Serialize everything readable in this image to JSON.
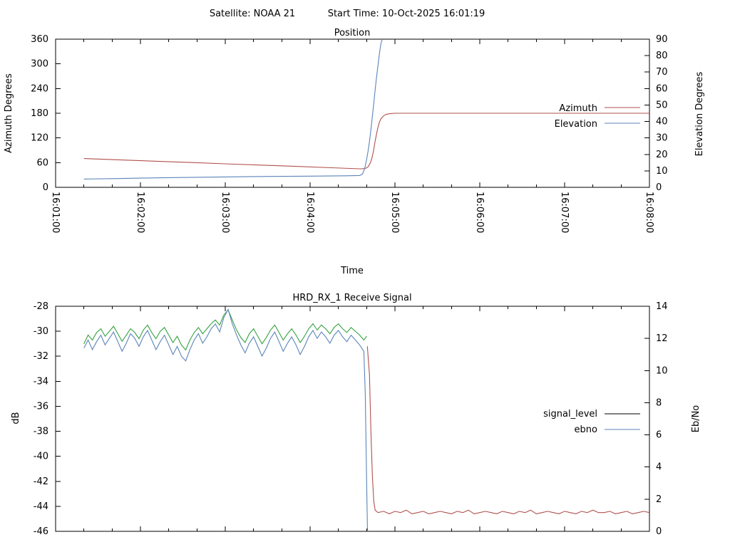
{
  "header": {
    "satellite_label": "Satellite: NOAA 21",
    "start_time_label": "Start Time: 10-Oct-2025 16:01:19"
  },
  "colors": {
    "azimuth": "#b0504c",
    "elevation": "#5b84b8",
    "signal_pre": "#35a23f",
    "signal_post": "#b0504c",
    "signal_legend": "#000000",
    "ebno": "#5b84b8",
    "axis": "#000000",
    "background": "#ffffff"
  },
  "chart_data": [
    {
      "type": "line",
      "title": "Position",
      "xlabel": "Time",
      "ylabel_left": "Azimuth Degrees",
      "ylabel_right": "Elevation Degrees",
      "x_range": [
        0,
        420
      ],
      "x_major_step": 60,
      "x_minor_step": 20,
      "x_tick_labels": [
        "16:01:00",
        "16:02:00",
        "16:03:00",
        "16:04:00",
        "16:05:00",
        "16:06:00",
        "16:07:00",
        "16:08:00"
      ],
      "left_range": [
        0,
        360
      ],
      "left_ticks": [
        0,
        60,
        120,
        180,
        240,
        300,
        360
      ],
      "right_range": [
        0,
        90
      ],
      "right_ticks": [
        0,
        10,
        20,
        30,
        40,
        50,
        60,
        70,
        80,
        90
      ],
      "grid": false,
      "legend_position": "inside-right",
      "legend": [
        {
          "label": "Azimuth",
          "color_key": "azimuth"
        },
        {
          "label": "Elevation",
          "color_key": "elevation"
        }
      ],
      "series": [
        {
          "name": "Azimuth",
          "axis": "left",
          "color_key": "azimuth",
          "segments": [
            {
              "points": [
                [
                  20,
                  70
                ],
                [
                  45,
                  66.8
                ],
                [
                  70,
                  63.6
                ],
                [
                  95,
                  60.4
                ],
                [
                  120,
                  57.2
                ],
                [
                  145,
                  54.0
                ],
                [
                  170,
                  50.8
                ],
                [
                  195,
                  47.6
                ],
                [
                  215,
                  45.0
                ],
                [
                  218,
                  45.2
                ],
                [
                  220,
                  47
                ],
                [
                  221,
                  50
                ],
                [
                  222,
                  55
                ],
                [
                  223,
                  63
                ],
                [
                  224,
                  75
                ],
                [
                  225,
                  92
                ],
                [
                  226,
                  112
                ],
                [
                  227,
                  130
                ],
                [
                  228,
                  146
                ],
                [
                  229,
                  158
                ],
                [
                  230,
                  166
                ],
                [
                  232,
                  174
                ],
                [
                  234,
                  177.5
                ],
                [
                  237,
                  179.3
                ],
                [
                  240,
                  180
                ],
                [
                  420,
                  180
                ]
              ]
            }
          ]
        },
        {
          "name": "Elevation",
          "axis": "right",
          "color_key": "elevation",
          "segments": [
            {
              "points": [
                [
                  20,
                  5
                ],
                [
                  40,
                  5.3
                ],
                [
                  60,
                  5.6
                ],
                [
                  80,
                  5.9
                ],
                [
                  100,
                  6.1
                ],
                [
                  120,
                  6.3
                ],
                [
                  150,
                  6.6
                ],
                [
                  180,
                  6.8
                ],
                [
                  205,
                  7.0
                ],
                [
                  215,
                  7.2
                ],
                [
                  217,
                  8
                ],
                [
                  218,
                  10
                ],
                [
                  219,
                  13
                ],
                [
                  220,
                  17
                ],
                [
                  221,
                  22
                ],
                [
                  222,
                  28
                ],
                [
                  223,
                  35
                ],
                [
                  224,
                  43
                ],
                [
                  225,
                  51
                ],
                [
                  226,
                  59
                ],
                [
                  227,
                  67
                ],
                [
                  228,
                  74
                ],
                [
                  229,
                  81
                ],
                [
                  230,
                  87
                ],
                [
                  231,
                  90
                ]
              ]
            }
          ]
        }
      ]
    },
    {
      "type": "line",
      "title": "HRD_RX_1 Receive Signal",
      "xlabel": "",
      "ylabel_left": "dB",
      "ylabel_right": "Eb/No",
      "x_range": [
        0,
        420
      ],
      "x_major_step": 60,
      "x_minor_step": 20,
      "x_tick_labels": [],
      "left_range": [
        -46,
        -28
      ],
      "left_ticks": [
        -46,
        -44,
        -42,
        -40,
        -38,
        -36,
        -34,
        -32,
        -30,
        -28
      ],
      "right_range": [
        0,
        14
      ],
      "right_ticks": [
        0,
        2,
        4,
        6,
        8,
        10,
        12,
        14
      ],
      "grid": false,
      "legend_position": "inside-right",
      "legend": [
        {
          "label": "signal_level",
          "color_key": "signal_legend"
        },
        {
          "label": "ebno",
          "color_key": "ebno"
        }
      ],
      "series": [
        {
          "name": "signal_level",
          "axis": "left",
          "color_key": "signal_pre",
          "segments": [
            {
              "t0": 20,
              "dt": 3,
              "values": [
                -31.0,
                -30.3,
                -30.7,
                -30.1,
                -29.8,
                -30.4,
                -30.0,
                -29.6,
                -30.2,
                -30.8,
                -30.3,
                -29.8,
                -30.1,
                -30.6,
                -29.9,
                -29.5,
                -30.1,
                -30.6,
                -30.0,
                -29.7,
                -30.3,
                -30.9,
                -30.4,
                -31.1,
                -31.5,
                -30.7,
                -30.1,
                -29.7,
                -30.2,
                -29.8,
                -29.4,
                -29.1,
                -29.5,
                -28.7,
                -28.3,
                -29.1,
                -29.9,
                -30.5,
                -30.9,
                -30.2,
                -29.8,
                -30.4,
                -31.0,
                -30.5,
                -29.9,
                -29.5,
                -30.1,
                -30.7,
                -30.2,
                -29.8,
                -30.3,
                -30.9,
                -30.4,
                -29.8,
                -29.4,
                -29.9,
                -29.5,
                -29.8,
                -30.2,
                -29.7,
                -29.4,
                -29.8,
                -30.1,
                -29.7,
                -30.0,
                -30.3,
                -30.7
              ]
            },
            {
              "points": [
                [
                  220,
                  -30.4
                ]
              ]
            }
          ]
        },
        {
          "name": "signal_level",
          "axis": "left",
          "color_key": "signal_post",
          "segments": [
            {
              "points": [
                [
                  220.5,
                  -31.2
                ],
                [
                  222,
                  -33.5
                ],
                [
                  223,
                  -38.0
                ],
                [
                  224,
                  -41.5
                ],
                [
                  225,
                  -43.6
                ],
                [
                  226,
                  -44.3
                ]
              ]
            },
            {
              "t0": 228,
              "dt": 4,
              "values": [
                -44.5,
                -44.4,
                -44.6,
                -44.4,
                -44.5,
                -44.3,
                -44.6,
                -44.5,
                -44.4,
                -44.6,
                -44.5,
                -44.4,
                -44.5,
                -44.6,
                -44.4,
                -44.5,
                -44.3,
                -44.6,
                -44.5,
                -44.4,
                -44.5,
                -44.6,
                -44.4,
                -44.5,
                -44.6,
                -44.4,
                -44.5,
                -44.3,
                -44.6,
                -44.5,
                -44.4,
                -44.5,
                -44.6,
                -44.4,
                -44.5,
                -44.6,
                -44.4,
                -44.5,
                -44.3,
                -44.5,
                -44.5,
                -44.4,
                -44.6,
                -44.5,
                -44.4,
                -44.6,
                -44.5,
                -44.4,
                -44.5
              ]
            }
          ]
        },
        {
          "name": "ebno",
          "axis": "right",
          "color_key": "ebno",
          "segments": [
            {
              "t0": 20,
              "dt": 3,
              "values": [
                11.4,
                11.9,
                11.3,
                11.8,
                12.2,
                11.6,
                12.0,
                12.4,
                11.8,
                11.2,
                11.7,
                12.3,
                12.0,
                11.5,
                12.1,
                12.5,
                11.9,
                11.3,
                11.8,
                12.2,
                11.6,
                11.0,
                11.5,
                10.9,
                10.6,
                11.3,
                11.9,
                12.3,
                11.7,
                12.1,
                12.6,
                12.9,
                12.4,
                13.3,
                13.8,
                12.9,
                12.2,
                11.6,
                11.1,
                11.7,
                12.1,
                11.5,
                10.9,
                11.4,
                12.0,
                12.4,
                11.8,
                11.2,
                11.7,
                12.1,
                11.6,
                11.0,
                11.5,
                12.1,
                12.5,
                12.0,
                12.4,
                12.1,
                11.7,
                12.2,
                12.5,
                12.1,
                11.8,
                12.2,
                11.9,
                11.6,
                11.2
              ]
            },
            {
              "points": [
                [
                  219,
                  8.5
                ],
                [
                  220,
                  3.0
                ],
                [
                  220.6,
                  0
                ]
              ]
            }
          ]
        }
      ]
    }
  ]
}
